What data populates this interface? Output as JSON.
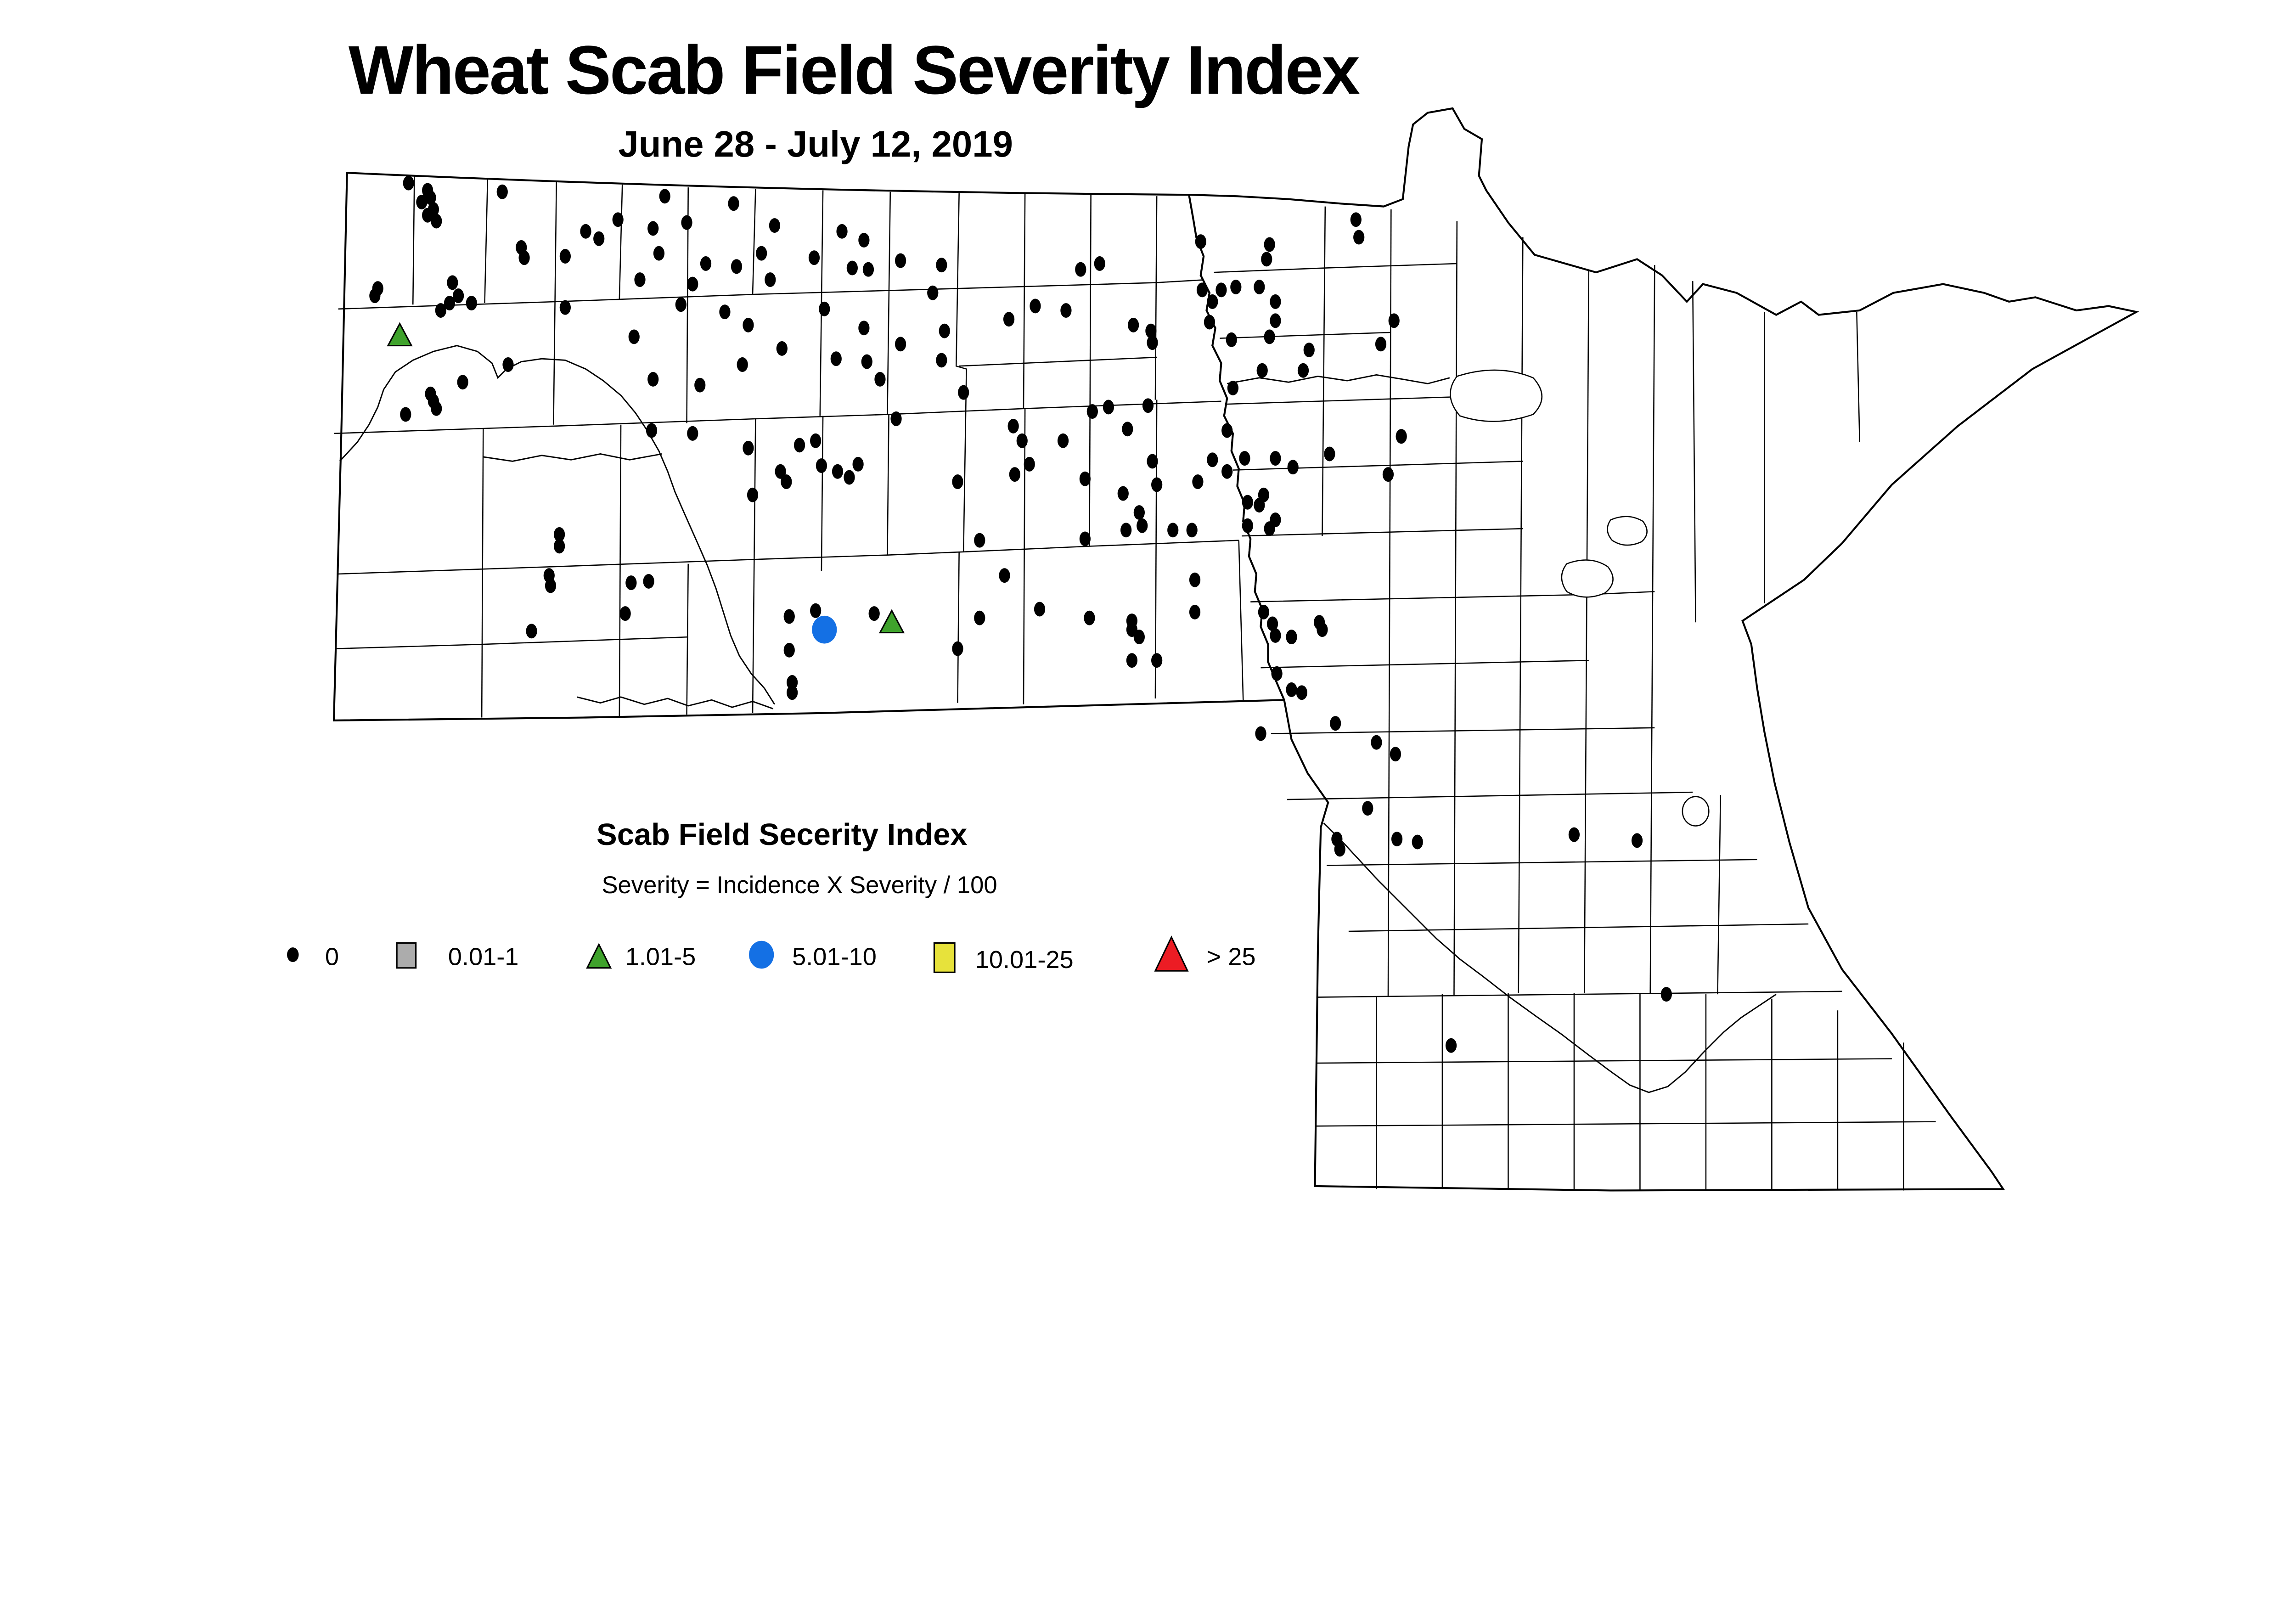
{
  "title": "Wheat Scab Field Severity Index",
  "subtitle": "June 28 - July 12, 2019",
  "legend": {
    "title": "Scab Field Secerity Index",
    "formula": "Severity = Incidence X Severity / 100",
    "items": [
      {
        "label": "0",
        "shape": "dot",
        "color": "#000000"
      },
      {
        "label": "0.01-1",
        "shape": "square",
        "color": "#ACACAC"
      },
      {
        "label": "1.01-5",
        "shape": "triangle",
        "color": "#3FA22C"
      },
      {
        "label": "5.01-10",
        "shape": "circle",
        "color": "#1470E4"
      },
      {
        "label": "10.01-25",
        "shape": "square",
        "color": "#E7E23B"
      },
      {
        "label": "> 25",
        "shape": "triangle",
        "color": "#EC1C24"
      }
    ]
  },
  "map_data": {
    "type": "point-map",
    "marker_categories": [
      {
        "label": "0",
        "shape": "dot",
        "color": "#000000",
        "points": [
          [
            279,
            125
          ],
          [
            292,
            130
          ],
          [
            294,
            135
          ],
          [
            288,
            138
          ],
          [
            296,
            143
          ],
          [
            292,
            147
          ],
          [
            298,
            151
          ],
          [
            343,
            131
          ],
          [
            454,
            134
          ],
          [
            501,
            139
          ],
          [
            422,
            150
          ],
          [
            446,
            156
          ],
          [
            400,
            158
          ],
          [
            409,
            163
          ],
          [
            469,
            152
          ],
          [
            529,
            154
          ],
          [
            575,
            158
          ],
          [
            590,
            164
          ],
          [
            356,
            169
          ],
          [
            358,
            176
          ],
          [
            386,
            175
          ],
          [
            450,
            173
          ],
          [
            482,
            180
          ],
          [
            503,
            182
          ],
          [
            520,
            173
          ],
          [
            556,
            176
          ],
          [
            582,
            183
          ],
          [
            593,
            184
          ],
          [
            437,
            191
          ],
          [
            473,
            194
          ],
          [
            526,
            191
          ],
          [
            258,
            197
          ],
          [
            256,
            202
          ],
          [
            309,
            193
          ],
          [
            313,
            202
          ],
          [
            307,
            207
          ],
          [
            322,
            207
          ],
          [
            301,
            212
          ],
          [
            386,
            210
          ],
          [
            465,
            208
          ],
          [
            495,
            213
          ],
          [
            563,
            211
          ],
          [
            433,
            230
          ],
          [
            511,
            222
          ],
          [
            590,
            224
          ],
          [
            534,
            238
          ],
          [
            571,
            245
          ],
          [
            592,
            247
          ],
          [
            507,
            249
          ],
          [
            446,
            259
          ],
          [
            478,
            263
          ],
          [
            347,
            249
          ],
          [
            316,
            261
          ],
          [
            294,
            269
          ],
          [
            296,
            274
          ],
          [
            298,
            279
          ],
          [
            277,
            283
          ],
          [
            445,
            294
          ],
          [
            473,
            296
          ],
          [
            511,
            306
          ],
          [
            546,
            304
          ],
          [
            561,
            318
          ],
          [
            586,
            317
          ],
          [
            533,
            322
          ],
          [
            615,
            178
          ],
          [
            643,
            181
          ],
          [
            637,
            200
          ],
          [
            645,
            226
          ],
          [
            643,
            246
          ],
          [
            615,
            235
          ],
          [
            601,
            259
          ],
          [
            612,
            286
          ],
          [
            658,
            268
          ],
          [
            689,
            218
          ],
          [
            707,
            209
          ],
          [
            728,
            212
          ],
          [
            738,
            184
          ],
          [
            751,
            180
          ],
          [
            774,
            222
          ],
          [
            786,
            226
          ],
          [
            787,
            234
          ],
          [
            820,
            165
          ],
          [
            821,
            198
          ],
          [
            828,
            206
          ],
          [
            834,
            198
          ],
          [
            844,
            196
          ],
          [
            826,
            220
          ],
          [
            841,
            232
          ],
          [
            871,
            206
          ],
          [
            871,
            219
          ],
          [
            926,
            150
          ],
          [
            928,
            162
          ],
          [
            862,
            253
          ],
          [
            842,
            265
          ],
          [
            746,
            281
          ],
          [
            757,
            278
          ],
          [
            784,
            277
          ],
          [
            770,
            293
          ],
          [
            692,
            291
          ],
          [
            698,
            301
          ],
          [
            693,
            324
          ],
          [
            838,
            294
          ],
          [
            828,
            314
          ],
          [
            838,
            322
          ],
          [
            850,
            313
          ],
          [
            871,
            313
          ],
          [
            948,
            324
          ],
          [
            957,
            298
          ],
          [
            537,
            329
          ],
          [
            580,
            326
          ],
          [
            514,
            338
          ],
          [
            382,
            365
          ],
          [
            382,
            373
          ],
          [
            375,
            393
          ],
          [
            376,
            400
          ],
          [
            431,
            398
          ],
          [
            443,
            397
          ],
          [
            427,
            419
          ],
          [
            363,
            431
          ],
          [
            539,
            421
          ],
          [
            557,
            417
          ],
          [
            597,
            419
          ],
          [
            539,
            444
          ],
          [
            541,
            466
          ],
          [
            541,
            473
          ],
          [
            654,
            329
          ],
          [
            741,
            327
          ],
          [
            767,
            337
          ],
          [
            790,
            331
          ],
          [
            818,
            329
          ],
          [
            852,
            343
          ],
          [
            863,
            338
          ],
          [
            778,
            350
          ],
          [
            780,
            359
          ],
          [
            769,
            362
          ],
          [
            801,
            362
          ],
          [
            814,
            362
          ],
          [
            852,
            359
          ],
          [
            871,
            355
          ],
          [
            741,
            368
          ],
          [
            669,
            369
          ],
          [
            686,
            393
          ],
          [
            710,
            416
          ],
          [
            669,
            422
          ],
          [
            744,
            422
          ],
          [
            773,
            424
          ],
          [
            773,
            430
          ],
          [
            816,
            396
          ],
          [
            816,
            418
          ],
          [
            863,
            418
          ],
          [
            869,
            426
          ],
          [
            871,
            434
          ],
          [
            882,
            435
          ],
          [
            903,
            430
          ],
          [
            778,
            435
          ],
          [
            654,
            443
          ],
          [
            773,
            451
          ],
          [
            790,
            451
          ],
          [
            872,
            460
          ],
          [
            882,
            471
          ],
          [
            889,
            473
          ],
          [
            912,
            494
          ],
          [
            861,
            501
          ],
          [
            940,
            507
          ],
          [
            953,
            515
          ],
          [
            557,
            301
          ],
          [
            572,
            322
          ],
          [
            703,
            317
          ],
          [
            726,
            301
          ],
          [
            787,
            315
          ],
          [
            867,
            167
          ],
          [
            865,
            177
          ],
          [
            860,
            196
          ],
          [
            952,
            219
          ],
          [
            867,
            230
          ],
          [
            894,
            239
          ],
          [
            943,
            235
          ],
          [
            890,
            253
          ],
          [
            908,
            310
          ],
          [
            883,
            319
          ],
          [
            860,
            345
          ],
          [
            867,
            361
          ],
          [
            901,
            425
          ],
          [
            934,
            552
          ],
          [
            913,
            573
          ],
          [
            915,
            580
          ],
          [
            954,
            573
          ],
          [
            968,
            575
          ],
          [
            1075,
            570
          ],
          [
            1118,
            574
          ],
          [
            1138,
            679
          ],
          [
            991,
            714
          ]
        ]
      },
      {
        "label": "1.01-5",
        "shape": "triangle",
        "color": "#3FA22C",
        "points": [
          [
            273,
            229
          ],
          [
            609,
            425
          ]
        ]
      },
      {
        "label": "5.01-10",
        "shape": "circle",
        "color": "#1470E4",
        "points": [
          [
            563,
            430
          ]
        ]
      }
    ]
  }
}
